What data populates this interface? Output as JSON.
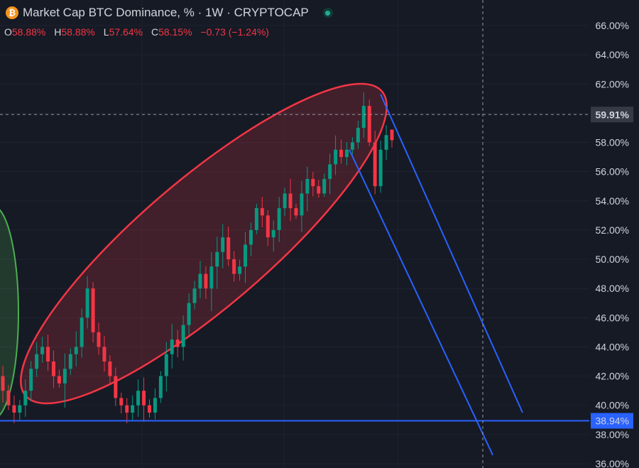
{
  "header": {
    "title": "Market Cap BTC Dominance, % · 1W · CRYPTOCAP",
    "icon": "bitcoin-icon",
    "ohlc": {
      "o_label": "O",
      "o_value": "58.88%",
      "h_label": "H",
      "h_value": "58.88%",
      "l_label": "L",
      "l_value": "57.64%",
      "c_label": "C",
      "c_value": "58.15%",
      "change": "−0.73 (−1.24%)"
    }
  },
  "colors": {
    "background": "#161a25",
    "up": "#089981",
    "down": "#f23645",
    "ellipse": "#f23645",
    "green_ellipse": "#4caf50",
    "trendline": "#2962ff",
    "text": "#d1d4dc"
  },
  "chart_data": {
    "type": "candlestick",
    "ylim": [
      36.0,
      67.0
    ],
    "y_ticks": [
      "36.00%",
      "38.00%",
      "40.00%",
      "42.00%",
      "44.00%",
      "46.00%",
      "48.00%",
      "50.00%",
      "52.00%",
      "54.00%",
      "56.00%",
      "58.00%",
      "60.00%",
      "62.00%",
      "64.00%",
      "66.00%"
    ],
    "price_labels": {
      "crosshair": "59.91%",
      "support": "38.94%"
    },
    "support_level": 38.94,
    "crosshair_level": 59.91,
    "trend_path": [
      42.0,
      41.0,
      40.0,
      39.5,
      40.0,
      41.0,
      42.5,
      43.5,
      44.0,
      43.0,
      42.0,
      41.5,
      42.5,
      43.5,
      44.0,
      46.0,
      48.0,
      45.0,
      44.0,
      43.0,
      42.0,
      40.5,
      40.0,
      39.5,
      40.0,
      41.0,
      40.0,
      39.5,
      40.5,
      42.0,
      43.5,
      44.5,
      44.0,
      45.5,
      47.0,
      48.0,
      49.0,
      48.0,
      49.5,
      50.5,
      51.5,
      50.0,
      49.0,
      49.5,
      51.0,
      52.0,
      53.5,
      53.0,
      51.5,
      52.0,
      53.5,
      54.5,
      53.5,
      53.0,
      54.5,
      55.5,
      55.0,
      54.5,
      55.5,
      56.5,
      57.5,
      57.0,
      57.5,
      58.0,
      59.0,
      60.5,
      58.0,
      55.0,
      57.5,
      58.5
    ],
    "candle_count": 70,
    "last_candle": {
      "o": 58.88,
      "h": 58.88,
      "l": 57.64,
      "c": 58.15
    }
  }
}
